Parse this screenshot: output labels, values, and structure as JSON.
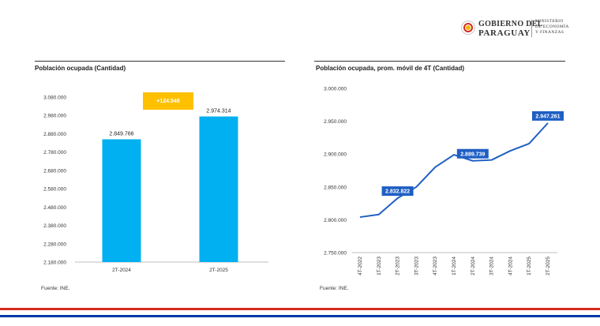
{
  "logo": {
    "gov_line1": "GOBIERNO DEL",
    "gov_line2": "PARAGUAY",
    "ministry_lines": [
      "MINISTERIO",
      "DE ECONOMÍA",
      "Y FINANZAS"
    ]
  },
  "colors": {
    "bar": "#00b0f0",
    "line": "#1f5fc4",
    "label_box": "#1f5fc4",
    "diff_box": "#ffc000",
    "stripe_red": "#d52b1e",
    "stripe_blue": "#0038a8"
  },
  "left_panel": {
    "title": "Población ocupada (Cantidad)",
    "source": "Fuente: INE."
  },
  "right_panel": {
    "title": "Población ocupada, prom. móvil de 4T (Cantidad)",
    "source": "Fuente: INE."
  },
  "chart_data": [
    {
      "type": "bar",
      "title": "Población ocupada (Cantidad)",
      "categories": [
        "2T-2024",
        "2T-2025"
      ],
      "values": [
        2849766,
        2974314
      ],
      "value_labels": [
        "2.849.766",
        "2.974.314"
      ],
      "ylim": [
        2180000,
        3080000
      ],
      "yticks": [
        "3.080.000",
        "2.980.000",
        "2.880.000",
        "2.780.000",
        "2.680.000",
        "2.580.000",
        "2.480.000",
        "2.380.000",
        "2.280.000",
        "2.180.000"
      ],
      "annotation": "+124.548",
      "grid": false
    },
    {
      "type": "line",
      "title": "Población ocupada, prom. móvil de 4T (Cantidad)",
      "categories": [
        "4T-2022",
        "1T-2023",
        "2T-2023",
        "3T-2023",
        "4T-2023",
        "1T-2024",
        "2T-2024",
        "3T-2024",
        "4T-2024",
        "1T-2025",
        "2T-2025"
      ],
      "values": [
        2804000,
        2808000,
        2832822,
        2850000,
        2880000,
        2899000,
        2889739,
        2891000,
        2905000,
        2916000,
        2947261
      ],
      "labeled_points": [
        {
          "index": 2,
          "label": "2.832.822"
        },
        {
          "index": 6,
          "label": "2.889.739"
        },
        {
          "index": 10,
          "label": "2.947.261"
        }
      ],
      "ylim": [
        2750000,
        3000000
      ],
      "yticks": [
        "3.000.000",
        "2.950.000",
        "2.900.000",
        "2.850.000",
        "2.800.000",
        "2.750.000"
      ],
      "grid": false
    }
  ]
}
